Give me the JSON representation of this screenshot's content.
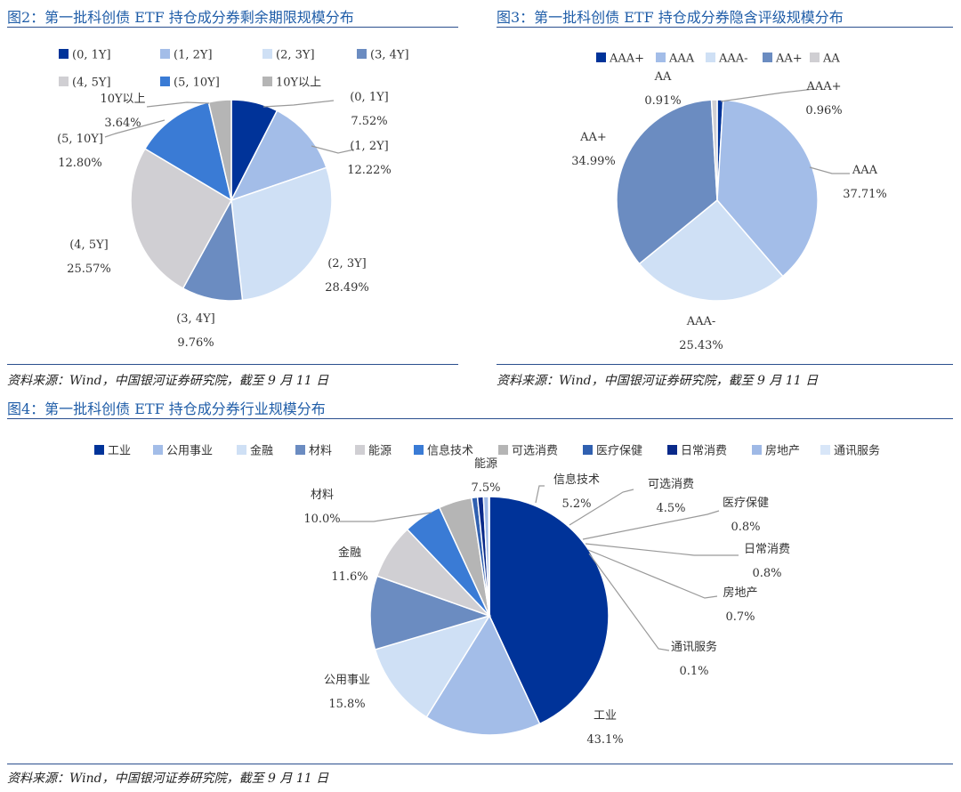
{
  "colors": {
    "title": "#1f5da8",
    "rule": "#2b4f8e",
    "leader": "#9a9a9a",
    "palette": [
      "#003399",
      "#a3bde8",
      "#cfe0f5",
      "#6b8cc1",
      "#d0cfd3",
      "#3a7bd5",
      "#b5b5b5",
      "#3060b0",
      "#0a2a8a",
      "#9fb9e6",
      "#d8e6f8"
    ]
  },
  "source_text": "资料来源：Wind，中国银河证券研究院，截至 9 月 11 日",
  "chart_data": [
    {
      "type": "pie",
      "title": "图2：第一批科创债 ETF 持仓成分券剩余期限规模分布",
      "legend_position": "top",
      "categories": [
        "(0, 1Y]",
        "(1, 2Y]",
        "(2, 3Y]",
        "(3, 4Y]",
        "(4, 5Y]",
        "(5, 10Y]",
        "10Y以上"
      ],
      "values": [
        7.52,
        12.22,
        28.49,
        9.76,
        25.57,
        12.8,
        3.64
      ],
      "value_labels": [
        "7.52%",
        "12.22%",
        "28.49%",
        "9.76%",
        "25.57%",
        "12.80%",
        "3.64%"
      ],
      "colors": [
        "#003399",
        "#a3bde8",
        "#cfe0f5",
        "#6b8cc1",
        "#d0cfd3",
        "#3a7bd5",
        "#b5b5b5"
      ]
    },
    {
      "type": "pie",
      "title": "图3：第一批科创债 ETF 持仓成分券隐含评级规模分布",
      "legend_position": "top",
      "categories": [
        "AAA+",
        "AAA",
        "AAA-",
        "AA+",
        "AA"
      ],
      "values": [
        0.96,
        37.71,
        25.43,
        34.99,
        0.91
      ],
      "value_labels": [
        "0.96%",
        "37.71%",
        "25.43%",
        "34.99%",
        "0.91%"
      ],
      "colors": [
        "#003399",
        "#a3bde8",
        "#cfe0f5",
        "#6b8cc1",
        "#d0cfd3"
      ]
    },
    {
      "type": "pie",
      "title": "图4：第一批科创债 ETF 持仓成分券行业规模分布",
      "legend_position": "top",
      "categories": [
        "工业",
        "公用事业",
        "金融",
        "材料",
        "能源",
        "信息技术",
        "可选消费",
        "医疗保健",
        "日常消费",
        "房地产",
        "通讯服务"
      ],
      "values": [
        43.1,
        15.8,
        11.6,
        10.0,
        7.5,
        5.2,
        4.5,
        0.8,
        0.8,
        0.7,
        0.1
      ],
      "value_labels": [
        "43.1%",
        "15.8%",
        "11.6%",
        "10.0%",
        "7.5%",
        "5.2%",
        "4.5%",
        "0.8%",
        "0.8%",
        "0.7%",
        "0.1%"
      ],
      "colors": [
        "#003399",
        "#a3bde8",
        "#cfe0f5",
        "#6b8cc1",
        "#d0cfd3",
        "#3a7bd5",
        "#b5b5b5",
        "#3060b0",
        "#0a2a8a",
        "#9fb9e6",
        "#d8e6f8"
      ]
    }
  ]
}
